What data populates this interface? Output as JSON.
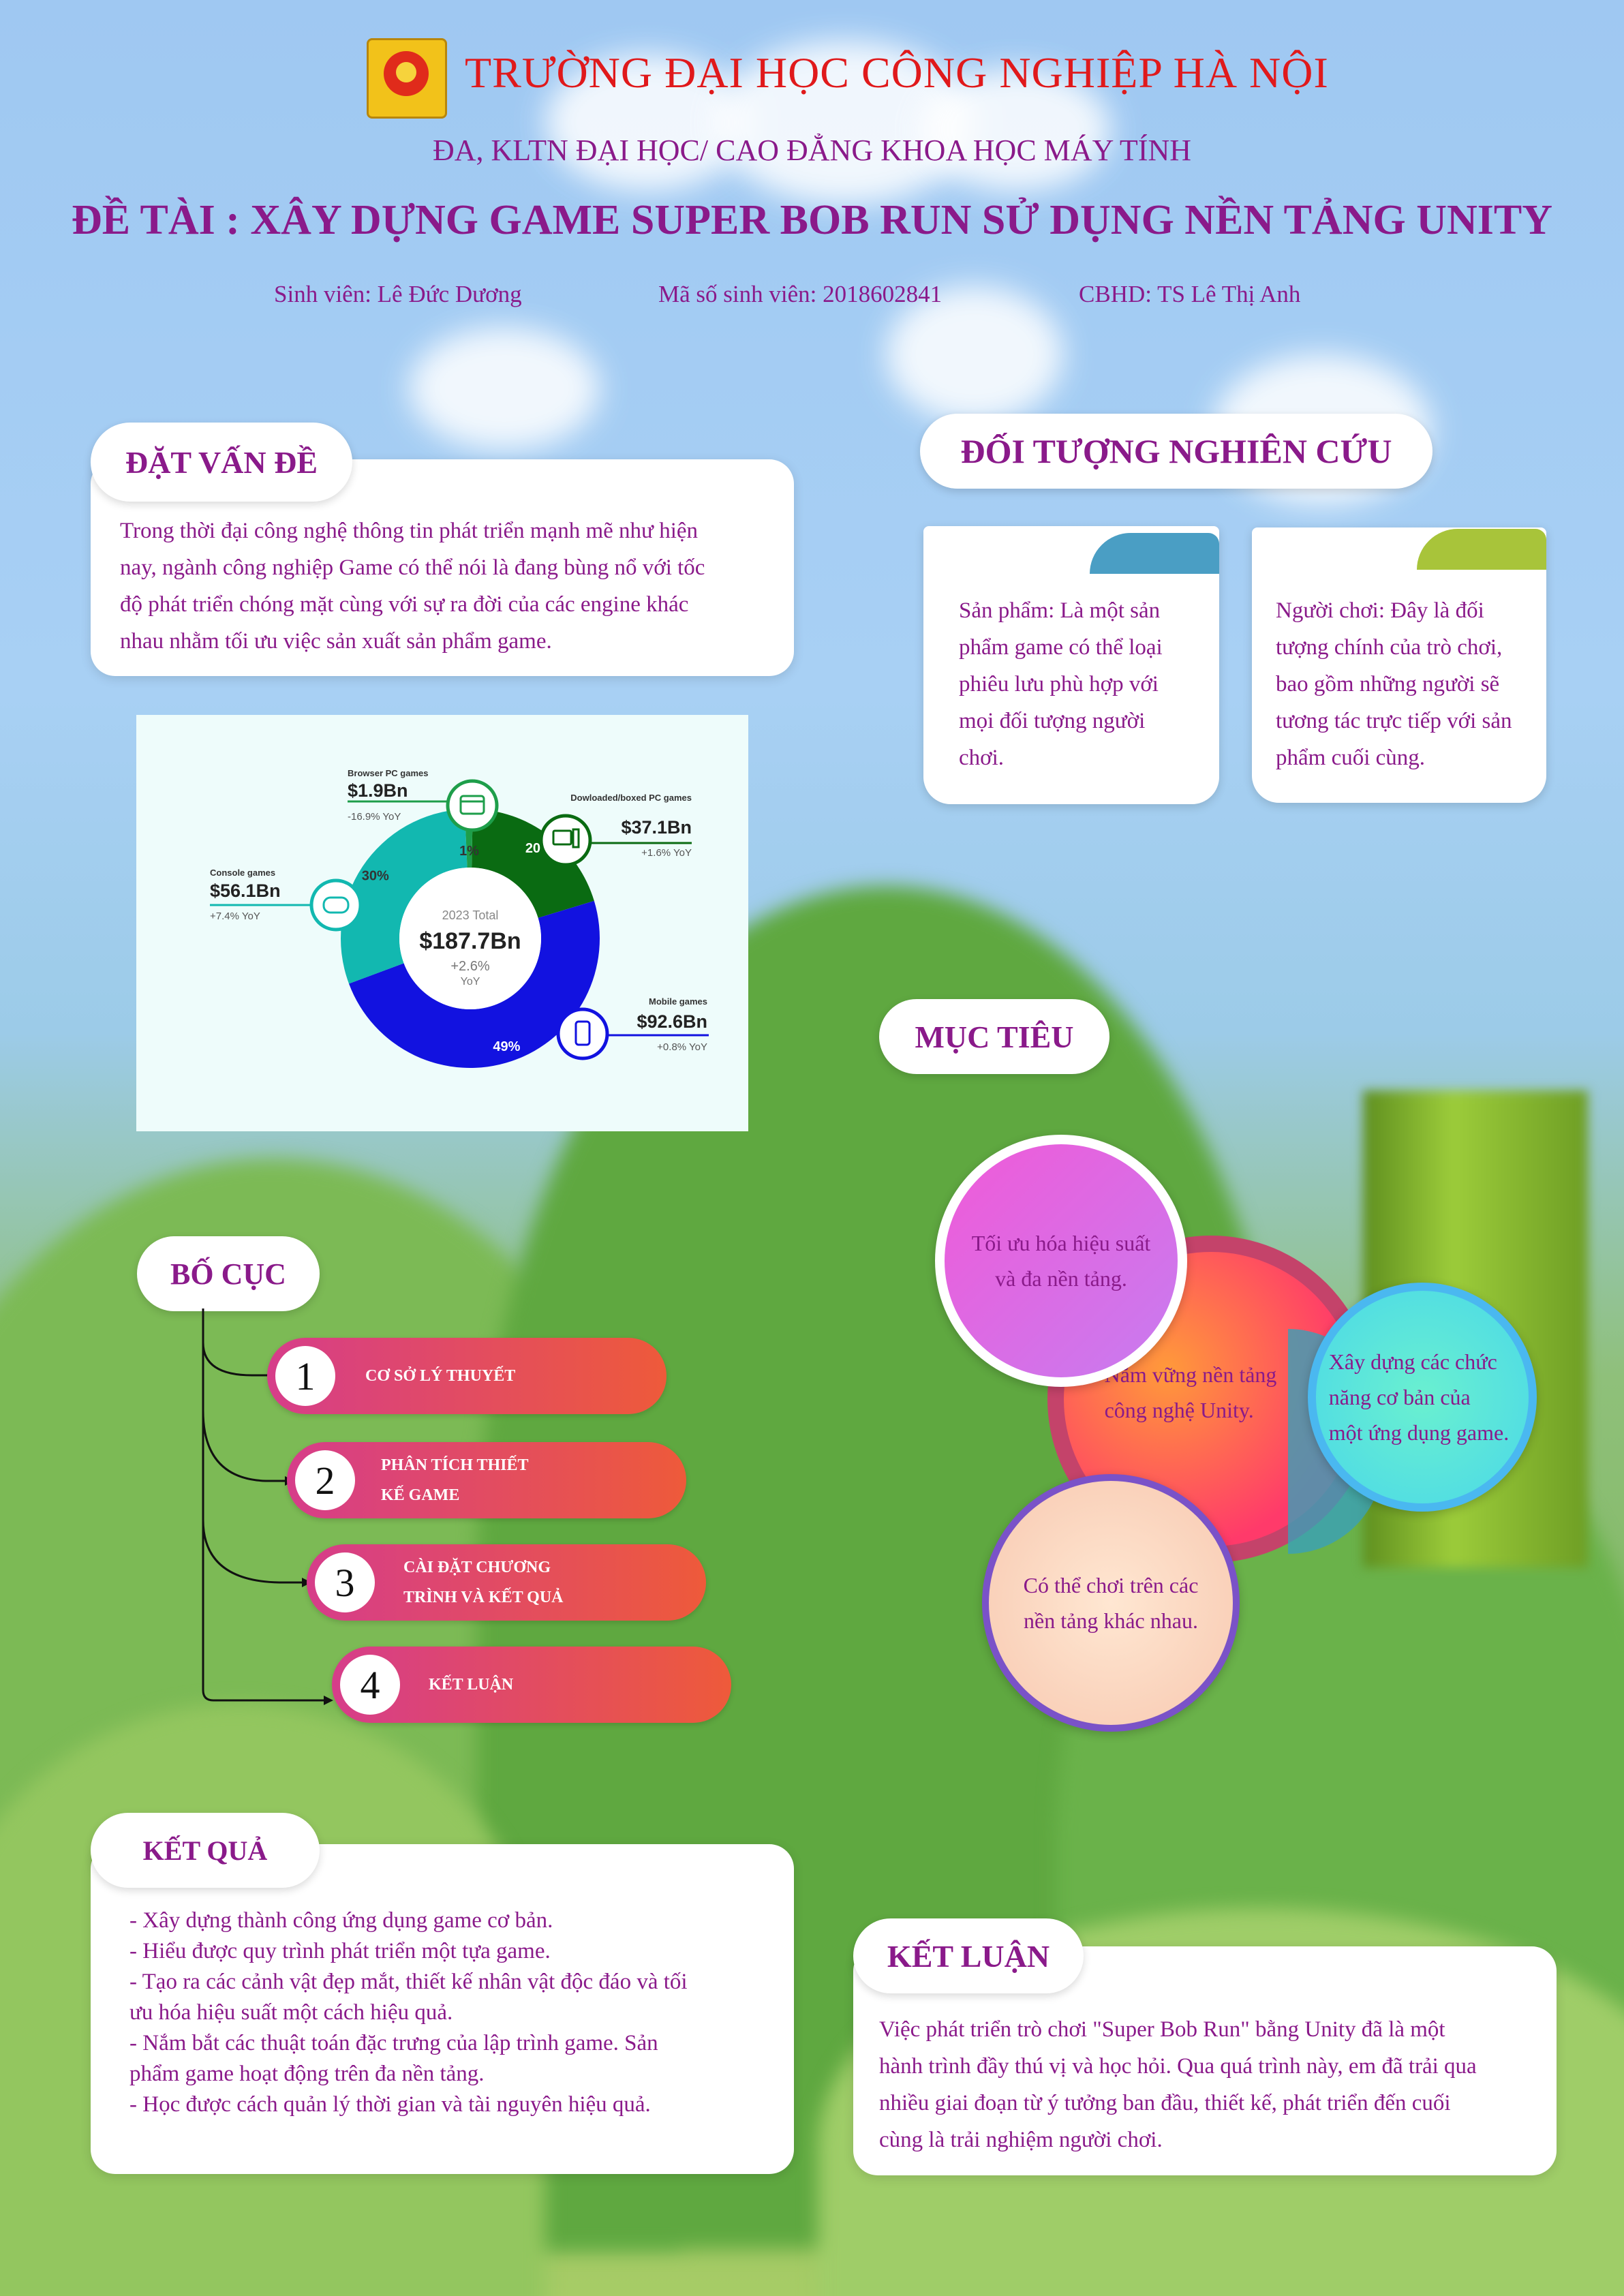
{
  "header": {
    "university": "TRƯỜNG ĐẠI HỌC CÔNG NGHIỆP HÀ NỘI",
    "program": "ĐA, KLTN ĐẠI HỌC/ CAO ĐẲNG KHOA HỌC MÁY TÍNH",
    "topic": "ĐỀ TÀI : XÂY DỰNG GAME SUPER BOB RUN SỬ DỤNG NỀN TẢNG UNITY",
    "student": "Sinh viên: Lê Đức Dương",
    "student_id": "Mã số sinh viên: 2018602841",
    "advisor": "CBHD: TS Lê Thị Anh"
  },
  "problem": {
    "heading": "ĐẶT VẤN ĐỀ",
    "lines": [
      "Trong thời đại công nghệ thông tin phát triển mạnh mẽ như hiện",
      "nay, ngành công nghiệp Game có thể nói là đang bùng nổ với tốc",
      "độ phát triển chóng mặt cùng với sự ra đời của các engine khác",
      "nhau nhằm tối ưu việc sản xuất sản phẩm game."
    ]
  },
  "chart_data": {
    "type": "pie",
    "center_label": "2023 Total",
    "center_value": "$187.7Bn",
    "center_growth": "+2.6%",
    "center_growth_unit": "YoY",
    "slices": [
      {
        "name": "Mobile games",
        "value": 49,
        "pct_label": "49%",
        "amount": "$92.6Bn",
        "yoy": "+0.8% YoY",
        "color": "#1212e0"
      },
      {
        "name": "Console games",
        "value": 30,
        "pct_label": "30%",
        "amount": "$56.1Bn",
        "yoy": "+7.4% YoY",
        "color": "#12b8b0"
      },
      {
        "name": "Browser PC games",
        "value": 1,
        "pct_label": "1%",
        "amount": "$1.9Bn",
        "yoy": "-16.9% YoY",
        "color": "#1e9e4a"
      },
      {
        "name": "Dowloaded/boxed PC games",
        "value": 20,
        "pct_label": "20%",
        "amount": "$37.1Bn",
        "yoy": "+1.6% YoY",
        "color": "#0a6b12"
      }
    ]
  },
  "research": {
    "heading": "ĐỐI TƯỢNG NGHIÊN CỨU",
    "product": [
      "Sản phẩm: Là một sản",
      "phẩm game có thể loại",
      "phiêu lưu phù hợp với",
      "mọi đối tượng người",
      "chơi."
    ],
    "player": [
      "Người chơi: Đây là đối",
      "tượng chính của trò chơi,",
      "bao gồm những người sẽ",
      "tương tác trực tiếp với sản",
      "phẩm cuối cùng."
    ]
  },
  "layout_section": {
    "heading": "BỐ CỤC",
    "items": [
      {
        "num": "1",
        "line1": "CƠ SỞ LÝ THUYẾT",
        "line2": ""
      },
      {
        "num": "2",
        "line1": "PHÂN TÍCH THIẾT",
        "line2": "KẾ GAME"
      },
      {
        "num": "3",
        "line1": "CÀI ĐẶT CHƯƠNG",
        "line2": "TRÌNH VÀ KẾT QUẢ"
      },
      {
        "num": "4",
        "line1": "KẾT LUẬN",
        "line2": ""
      }
    ]
  },
  "goals": {
    "heading": "MỤC TIÊU",
    "optimize": [
      "Tối ưu hóa hiệu suất",
      "và đa nền tảng."
    ],
    "master": [
      "Nắm vững nền tảng",
      "công nghệ Unity."
    ],
    "build": [
      "Xây dựng các chức",
      "năng cơ bản của",
      "một ứng dụng game."
    ],
    "play": [
      "Có thể chơi trên các",
      "nền tảng khác nhau."
    ]
  },
  "results": {
    "heading": "KẾT QUẢ",
    "lines": [
      "- Xây dựng thành công ứng dụng game cơ bản.",
      "- Hiểu được quy trình phát triển một tựa game.",
      "- Tạo ra các cảnh vật đẹp mắt, thiết kế nhân vật độc đáo và tối",
      "ưu hóa hiệu suất một cách hiệu quả.",
      "- Nắm bắt các thuật toán đặc trưng của lập trình game. Sản",
      "phẩm game hoạt động trên đa nền tảng.",
      "- Học được cách quản lý thời gian và tài nguyên hiệu quả."
    ]
  },
  "conclusion": {
    "heading": "KẾT LUẬN",
    "lines": [
      "Việc phát triển trò chơi \"Super Bob Run\" bằng Unity đã là một",
      "hành trình đầy thú vị và học hỏi. Qua quá trình này, em đã trải qua",
      "nhiều giai đoạn từ ý tưởng ban đầu, thiết kế, phát triển đến cuối",
      "cùng là trải nghiệm người chơi."
    ]
  },
  "colors": {
    "purple": "#8a1a8a",
    "red": "#e0191b",
    "pill_start": "#d63d8a",
    "pill_end": "#ee5a3a"
  }
}
